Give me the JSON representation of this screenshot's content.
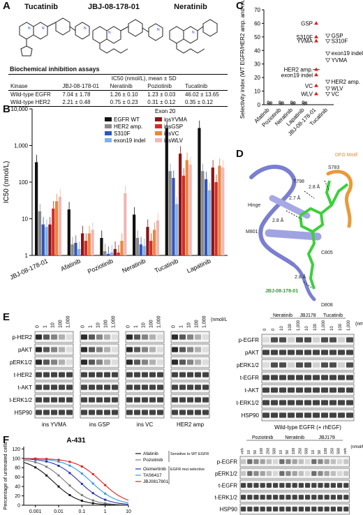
{
  "panel_labels": {
    "a": "A",
    "b": "B",
    "c": "C",
    "d": "D",
    "e": "E",
    "f": "F"
  },
  "panelA": {
    "compounds": [
      "Tucatinib",
      "JBJ-08-178-01",
      "Neratinib"
    ],
    "table_title": "Biochemical inhibition assays",
    "header_unit": "IC50 (nmol/L), mean ± SD",
    "col_kinase": "Kinase",
    "columns": [
      "JBJ-08-178-01",
      "Neratinib",
      "Poziotinib",
      "Tucatinib"
    ],
    "rows": [
      {
        "kinase": "Wild-type EGFR",
        "vals": [
          "7.04 ± 1.78",
          "1.26 ± 0.10",
          "1.23 ± 0.03",
          "46.02 ± 13.65"
        ]
      },
      {
        "kinase": "Wild-type HER2",
        "vals": [
          "2.21 ± 0.48",
          "0.75 ± 0.23",
          "0.31 ± 0.12",
          "0.35 ± 0.12"
        ]
      }
    ]
  },
  "chart_data": [
    {
      "id": "B",
      "type": "bar",
      "ylabel": "IC50 (nmol/L)",
      "yscale": "log",
      "ylim": [
        1,
        10000
      ],
      "yticks": [
        "10,000",
        "1,000",
        "100",
        "10",
        "1"
      ],
      "legend_group_title": "Exon 20",
      "categories": [
        "JBJ-08-178-01",
        "Afatinib",
        "Poziotinib",
        "Neratinib",
        "Tucatinib",
        "Lapatinib"
      ],
      "series": [
        {
          "name": "EGFR WT",
          "color": "#111111",
          "values": [
            350,
            18,
            3,
            13,
            3000,
            3000
          ]
        },
        {
          "name": "HER2 amp.",
          "color": "#8a8a8a",
          "values": [
            16,
            2,
            1.3,
            3,
            200,
            200
          ]
        },
        {
          "name": "S310F",
          "color": "#3355bb",
          "values": [
            7,
            2.2,
            1.1,
            2,
            130,
            120
          ]
        },
        {
          "name": "exon19 indel",
          "color": "#7fb2e6",
          "values": [
            6,
            1.5,
            1.2,
            1.8,
            25,
            60
          ]
        },
        {
          "name": "insYVMA",
          "color": "#8b1414",
          "values": [
            7,
            4,
            1.5,
            6,
            600,
            250
          ]
        },
        {
          "name": "insGSP",
          "color": "#d62a2a",
          "values": [
            19,
            2.5,
            1.2,
            2.5,
            150,
            100
          ]
        },
        {
          "name": "insVC",
          "color": "#e8883a",
          "values": [
            30,
            4,
            2.5,
            5,
            400,
            280
          ]
        },
        {
          "name": "insWLV",
          "color": "#f0b8b8",
          "values": [
            40,
            5,
            50,
            9,
            300,
            250
          ]
        }
      ]
    },
    {
      "id": "C",
      "type": "scatter",
      "ylabel": "Selectivity index (WT EGFR/HER2 amp. and mut)",
      "ylim": [
        0,
        70
      ],
      "yticks": [
        0,
        10,
        20,
        30,
        40,
        50,
        60,
        70
      ],
      "categories": [
        "Afatinib",
        "Poziotinib",
        "Neratinib",
        "Lapatinib",
        "JBJ-08-178-01",
        "Tucatinib"
      ],
      "annotations_jbj": [
        {
          "label": "GSP",
          "y": 60
        },
        {
          "label": "S310F",
          "y": 50
        },
        {
          "label": "YVMA",
          "y": 47
        },
        {
          "label": "HER2 amp.",
          "y": 26
        },
        {
          "label": "exon19 indel",
          "y": 22
        },
        {
          "label": "VC",
          "y": 14
        },
        {
          "label": "WLV",
          "y": 8
        }
      ],
      "annotations_tuc": [
        {
          "label": "GSP",
          "y": 51
        },
        {
          "label": "S310F",
          "y": 47
        },
        {
          "label": "exon19 indel",
          "y": 38
        },
        {
          "label": "YVMA",
          "y": 33
        },
        {
          "label": "HER2 amp.",
          "y": 17
        },
        {
          "label": "WLV",
          "y": 12
        },
        {
          "label": "VC",
          "y": 8
        }
      ]
    },
    {
      "id": "F",
      "type": "line",
      "title": "A-431",
      "ylabel": "Percentage of untreated cells",
      "xscale": "log",
      "xticks": [
        "0.001",
        "0.01",
        "0.1",
        "1",
        "10"
      ],
      "yticks": [
        0,
        20,
        40,
        60,
        80,
        100,
        120
      ],
      "ylim": [
        0,
        125
      ],
      "series": [
        {
          "name": "Afatinib",
          "color": "#111111",
          "ic50": 0.006
        },
        {
          "name": "Poziotinib",
          "color": "#777777",
          "ic50": 0.02
        },
        {
          "name": "Osimertinib",
          "color": "#2233aa",
          "ic50": 0.08
        },
        {
          "name": "TAS6417",
          "color": "#3399dd",
          "ic50": 0.25
        },
        {
          "name": "JBJ0817801",
          "color": "#dd2222",
          "ic50": 0.7
        }
      ],
      "legend_groups": [
        {
          "text": "Sensitive to WT EGFR"
        },
        {
          "text": "EGFR mut selective"
        }
      ]
    }
  ],
  "panelD": {
    "labels": [
      "T798",
      "S783",
      "Hinge",
      "M801",
      "C805",
      "D808",
      "DFG Motif",
      "JBJ-08-178-01"
    ],
    "distances": [
      "2.8 Å",
      "2.7 Å",
      "2.8 Å",
      "2.8 Å"
    ]
  },
  "panelE_left": {
    "unit": "(nmol/L)",
    "doses": [
      "0",
      "1",
      "10",
      "100",
      "1,000"
    ],
    "rows": [
      "p-HER2",
      "pAKT",
      "pERK1/2",
      "t-HER2",
      "t-AKT",
      "t-ERK1/2",
      "HSP90"
    ],
    "groups": [
      "ins YVMA",
      "ins GSP",
      "ins VC",
      "HER2 amp"
    ]
  },
  "panelE_right": {
    "drugs": [
      "Neratinib",
      "JBJ178",
      "Tucatinib"
    ],
    "unit": "(nmol/L)",
    "doses": [
      "0",
      "0",
      "10",
      "100",
      "1,000",
      "10",
      "100",
      "1,000",
      "10",
      "100",
      "1,000"
    ],
    "rows": [
      "p-EGFR",
      "pAKT",
      "pERK1/2",
      "t-EGFR",
      "t-AKT",
      "t-ERK1/2",
      "HSP90"
    ],
    "caption": "Wild-type EGFR (+ rhEGF)"
  },
  "panelF_right": {
    "drugs": [
      "Poziotinib",
      "Neratinib",
      "JBJ178"
    ],
    "unit": "(nmol/L)",
    "doses": [
      "veh",
      "10",
      "50",
      "100",
      "250",
      "500",
      "10",
      "50",
      "100",
      "250",
      "500",
      "10",
      "50",
      "100",
      "250",
      "500",
      "veh"
    ],
    "rows": [
      "p-EGFR",
      "pERK1/2",
      "t-EGFR",
      "t-ERK1/2",
      "HSP90"
    ]
  }
}
